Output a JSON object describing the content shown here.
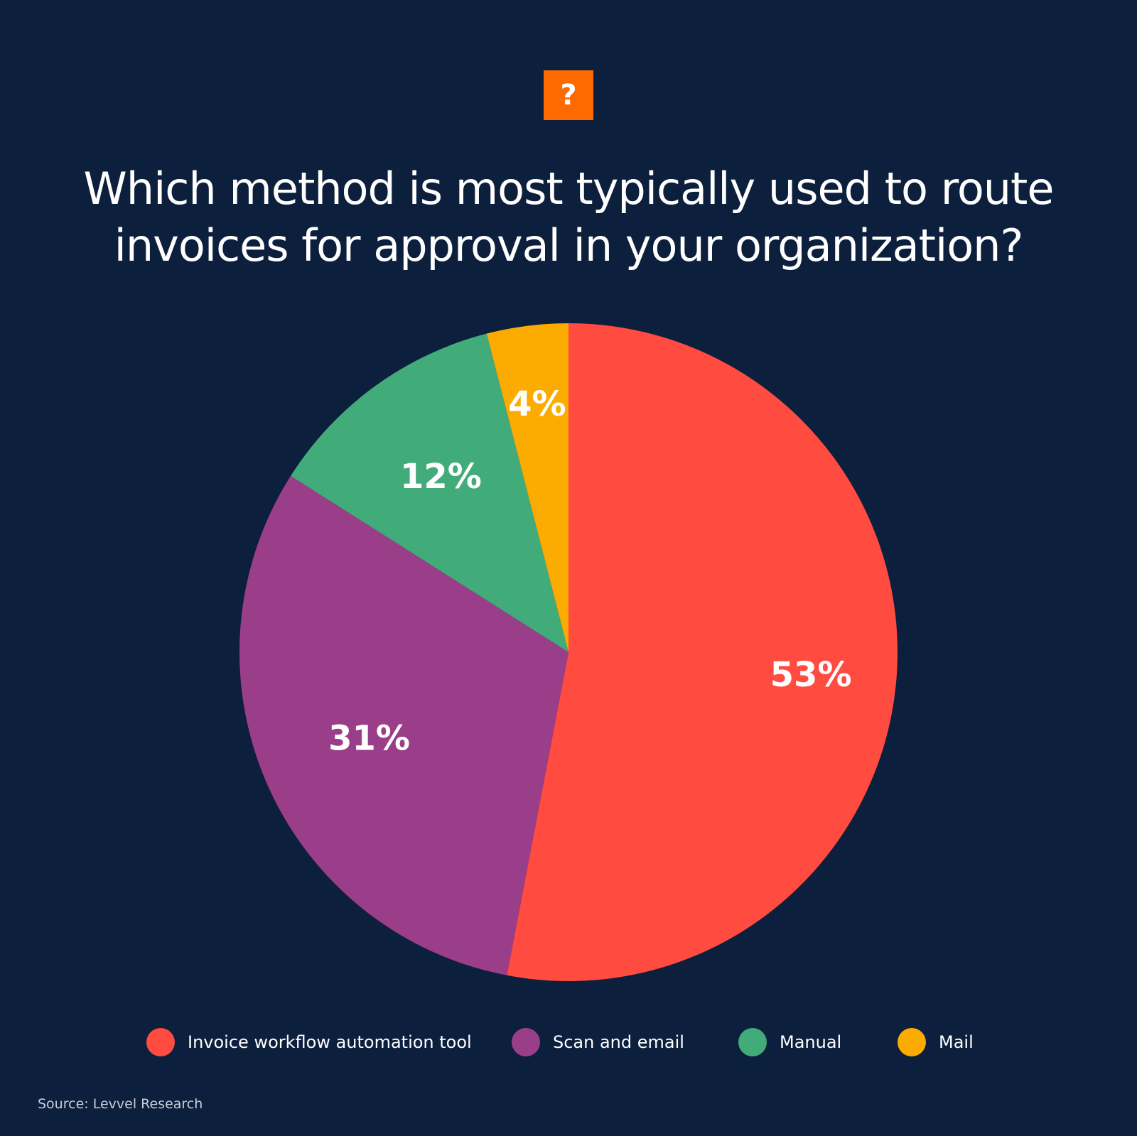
{
  "badge": {
    "icon": "question-mark-icon",
    "text": "?",
    "color": "#ff6a00"
  },
  "title": {
    "line1": "Which method is most typically used to route",
    "line2": "invoices for approval in your organization?"
  },
  "source": "Source: Levvel Research",
  "colors": {
    "background": "#0c1f3d"
  },
  "chart_data": {
    "type": "pie",
    "title": "Which method is most typically used to route invoices for approval in your organization?",
    "categories": [
      "Invoice workflow automation tool",
      "Scan and email",
      "Manual",
      "Mail"
    ],
    "values": [
      53,
      31,
      12,
      4
    ],
    "unit": "%",
    "labels": [
      "53%",
      "31%",
      "12%",
      "4%"
    ],
    "colors": [
      "#ff4b40",
      "#9b3e8a",
      "#42ab7a",
      "#fcab00"
    ],
    "legend_position": "bottom",
    "start": "top",
    "direction": "clockwise"
  }
}
